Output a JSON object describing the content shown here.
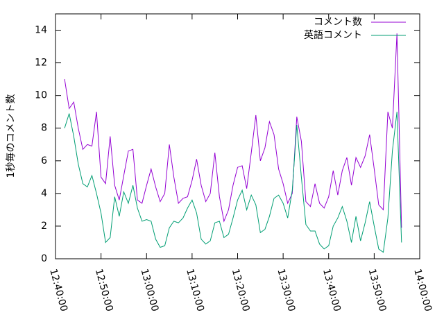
{
  "chart_data": {
    "type": "line",
    "ylabel": "1秒毎のコメント数",
    "xlim": [
      "12:40:00",
      "14:00:00"
    ],
    "xticks": [
      "12:40:00",
      "12:50:00",
      "13:00:00",
      "13:10:00",
      "13:20:00",
      "13:30:00",
      "13:40:00",
      "13:50:00",
      "14:00:00"
    ],
    "ylim": [
      0,
      15
    ],
    "yticks": [
      0,
      2,
      4,
      6,
      8,
      10,
      12,
      14
    ],
    "legend": "top-right",
    "x": [
      "12:42:00",
      "12:43:00",
      "12:44:00",
      "12:45:00",
      "12:46:00",
      "12:47:00",
      "12:48:00",
      "12:49:00",
      "12:50:00",
      "12:51:00",
      "12:52:00",
      "12:53:00",
      "12:54:00",
      "12:55:00",
      "12:56:00",
      "12:57:00",
      "12:58:00",
      "12:59:00",
      "13:00:00",
      "13:01:00",
      "13:02:00",
      "13:03:00",
      "13:04:00",
      "13:05:00",
      "13:06:00",
      "13:07:00",
      "13:08:00",
      "13:09:00",
      "13:10:00",
      "13:11:00",
      "13:12:00",
      "13:13:00",
      "13:14:00",
      "13:15:00",
      "13:16:00",
      "13:17:00",
      "13:18:00",
      "13:19:00",
      "13:20:00",
      "13:21:00",
      "13:22:00",
      "13:23:00",
      "13:24:00",
      "13:25:00",
      "13:26:00",
      "13:27:00",
      "13:28:00",
      "13:29:00",
      "13:30:00",
      "13:31:00",
      "13:32:00",
      "13:33:00",
      "13:34:00",
      "13:35:00",
      "13:36:00",
      "13:37:00",
      "13:38:00",
      "13:39:00",
      "13:40:00",
      "13:41:00",
      "13:42:00",
      "13:43:00",
      "13:44:00",
      "13:45:00",
      "13:46:00",
      "13:47:00",
      "13:48:00",
      "13:49:00",
      "13:50:00",
      "13:51:00",
      "13:52:00",
      "13:53:00",
      "13:54:00",
      "13:55:00",
      "13:56:00"
    ],
    "series": [
      {
        "name": "コメント数",
        "color": "#9400d3",
        "values": [
          11.0,
          9.2,
          9.6,
          8.0,
          6.7,
          7.0,
          6.9,
          9.0,
          5.0,
          4.6,
          7.5,
          4.5,
          3.6,
          5.1,
          6.6,
          6.7,
          3.6,
          3.4,
          4.5,
          5.5,
          4.4,
          3.5,
          4.0,
          7.0,
          5.0,
          3.4,
          3.7,
          3.8,
          4.8,
          6.1,
          4.5,
          3.5,
          4.0,
          6.5,
          3.8,
          2.3,
          3.0,
          4.5,
          5.6,
          5.7,
          4.3,
          6.5,
          8.8,
          6.0,
          6.8,
          8.4,
          7.6,
          5.5,
          4.6,
          3.4,
          4.0,
          8.7,
          7.2,
          3.5,
          3.2,
          4.6,
          3.4,
          3.1,
          3.8,
          5.4,
          3.9,
          5.4,
          6.2,
          4.5,
          6.2,
          5.6,
          6.3,
          7.6,
          5.5,
          3.3,
          3.0,
          9.0,
          8.0,
          13.8,
          1.9
        ]
      },
      {
        "name": "英語コメント",
        "color": "#009e73",
        "values": [
          8.0,
          8.9,
          7.5,
          5.8,
          4.6,
          4.4,
          5.1,
          4.0,
          2.8,
          1.0,
          1.3,
          3.8,
          2.6,
          4.1,
          3.4,
          4.5,
          3.1,
          2.3,
          2.4,
          2.3,
          1.2,
          0.7,
          0.8,
          1.9,
          2.3,
          2.2,
          2.5,
          3.1,
          3.6,
          2.8,
          1.2,
          0.9,
          1.1,
          2.2,
          2.3,
          1.3,
          1.5,
          2.5,
          3.6,
          4.2,
          3.0,
          3.9,
          3.3,
          1.6,
          1.8,
          2.6,
          3.7,
          3.9,
          3.4,
          2.5,
          4.2,
          8.2,
          5.0,
          2.1,
          1.7,
          1.7,
          0.9,
          0.6,
          0.8,
          2.0,
          2.5,
          3.2,
          2.3,
          1.0,
          2.6,
          1.1,
          2.2,
          3.5,
          2.0,
          0.6,
          0.4,
          2.5,
          6.6,
          9.0,
          1.0
        ]
      }
    ]
  }
}
